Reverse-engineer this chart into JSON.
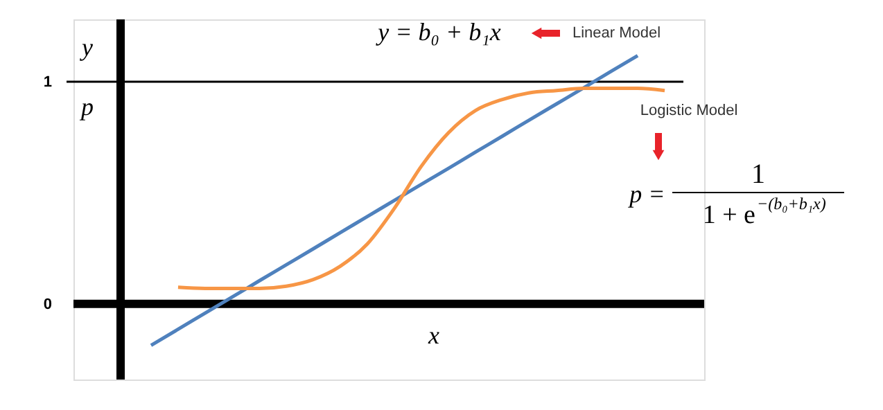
{
  "chart_data": {
    "type": "line",
    "xlabel": "x",
    "ylabel": "y",
    "categories": [
      null,
      null,
      null,
      null,
      null,
      null,
      null,
      null,
      null,
      null,
      null,
      null,
      null,
      null,
      null,
      null,
      null,
      null,
      null,
      null
    ],
    "series": [
      {
        "color": "#4f81bd",
        "values": [
          -0.186,
          -0.114,
          -0.041,
          0.031,
          0.104,
          0.176,
          0.248,
          0.321,
          0.393,
          0.466,
          0.538,
          0.61,
          0.683,
          0.755,
          0.828,
          0.9,
          0.972,
          1.045,
          1.117,
          null
        ]
      },
      {
        "color": "#f79646",
        "values": [
          null,
          0.075,
          0.07,
          0.07,
          0.07,
          0.08,
          0.11,
          0.17,
          0.27,
          0.43,
          0.62,
          0.77,
          0.87,
          0.92,
          0.95,
          0.96,
          0.97,
          0.97,
          0.97,
          0.96
        ]
      }
    ],
    "ylim": [
      -0.34,
      1.28
    ],
    "yticks": [
      0,
      1
    ],
    "grid": false,
    "tick_labels": "y",
    "marker": "none",
    "line_style": "solid",
    "ref_lines": [
      {
        "axis": "y",
        "value": 1,
        "color": "#000000"
      }
    ],
    "annotations": [
      "p",
      "y = b₀ + b₁x",
      "Linear Model",
      "Logistic Model",
      "p =",
      "1",
      "1 + e$^{−(b₀+b₁x)}$"
    ]
  }
}
